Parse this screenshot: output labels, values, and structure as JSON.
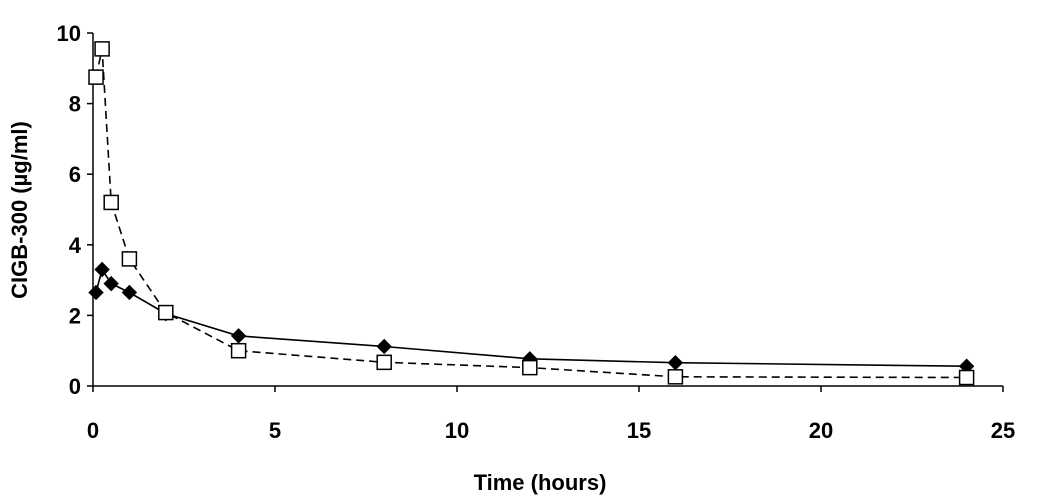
{
  "chart_data": {
    "type": "line",
    "title": "",
    "xlabel": "Time (hours)",
    "ylabel": "CIGB-300 (µg/ml)",
    "xlim": [
      0,
      25
    ],
    "ylim": [
      0,
      10
    ],
    "xticks": [
      0,
      5,
      10,
      15,
      20,
      25
    ],
    "yticks": [
      0,
      2,
      4,
      6,
      8,
      10
    ],
    "grid": false,
    "legend": "none",
    "series": [
      {
        "marker": "filled-diamond",
        "line_style": "solid",
        "color": "#000000",
        "x": [
          0.083,
          0.25,
          0.5,
          1,
          2,
          4,
          8,
          12,
          16,
          24
        ],
        "y": [
          2.65,
          3.3,
          2.9,
          2.65,
          2.05,
          1.42,
          1.12,
          0.77,
          0.66,
          0.56
        ]
      },
      {
        "marker": "open-square",
        "line_style": "dashed",
        "color": "#000000",
        "x": [
          0.083,
          0.25,
          0.5,
          1,
          2,
          4,
          8,
          12,
          16,
          24
        ],
        "y": [
          8.75,
          9.55,
          5.2,
          3.6,
          2.08,
          1.0,
          0.67,
          0.52,
          0.26,
          0.24
        ]
      }
    ]
  }
}
